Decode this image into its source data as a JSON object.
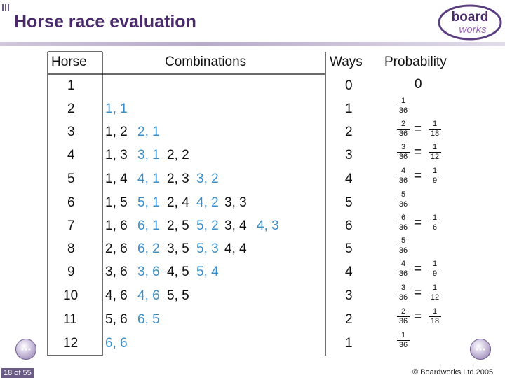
{
  "title": "Horse race evaluation",
  "logo": {
    "line1": "board",
    "line2": "works"
  },
  "table": {
    "headers": {
      "horse": "Horse",
      "combinations": "Combinations",
      "ways": "Ways",
      "probability": "Probability"
    },
    "rows": [
      {
        "horse": "1",
        "combos": [],
        "ways": "0",
        "prob": {
          "zero": "0"
        }
      },
      {
        "horse": "2",
        "combos": [
          "1, 1"
        ],
        "ways": "1",
        "prob": {
          "n": "1",
          "d": "36"
        }
      },
      {
        "horse": "3",
        "combos": [
          "1, 2",
          "2, 1"
        ],
        "ways": "2",
        "prob": {
          "n": "2",
          "d": "36",
          "sn": "1",
          "sd": "18"
        }
      },
      {
        "horse": "4",
        "combos": [
          "1, 3",
          "3, 1",
          "2, 2"
        ],
        "ways": "3",
        "prob": {
          "n": "3",
          "d": "36",
          "sn": "1",
          "sd": "12"
        }
      },
      {
        "horse": "5",
        "combos": [
          "1, 4",
          "4, 1",
          "2, 3",
          "3, 2"
        ],
        "ways": "4",
        "prob": {
          "n": "4",
          "d": "36",
          "sn": "1",
          "sd": "9"
        }
      },
      {
        "horse": "6",
        "combos": [
          "1, 5",
          "5, 1",
          "2, 4",
          "4, 2",
          "3, 3"
        ],
        "ways": "5",
        "prob": {
          "n": "5",
          "d": "36"
        }
      },
      {
        "horse": "7",
        "combos": [
          "1, 6",
          "6, 1",
          "2, 5",
          "5, 2",
          "3, 4",
          "4, 3"
        ],
        "ways": "6",
        "prob": {
          "n": "6",
          "d": "36",
          "sn": "1",
          "sd": "6"
        }
      },
      {
        "horse": "8",
        "combos": [
          "2, 6",
          "6, 2",
          "3, 5",
          "5, 3",
          "4, 4"
        ],
        "ways": "5",
        "prob": {
          "n": "5",
          "d": "36"
        }
      },
      {
        "horse": "9",
        "combos": [
          "3, 6",
          "3, 6",
          "4, 5",
          "5, 4"
        ],
        "ways": "4",
        "prob": {
          "n": "4",
          "d": "36",
          "sn": "1",
          "sd": "9"
        }
      },
      {
        "horse": "10",
        "combos": [
          "4, 6",
          "4, 6",
          "5, 5"
        ],
        "ways": "3",
        "prob": {
          "n": "3",
          "d": "36",
          "sn": "1",
          "sd": "12"
        }
      },
      {
        "horse": "11",
        "combos": [
          "5, 6",
          "6, 5"
        ],
        "ways": "2",
        "prob": {
          "n": "2",
          "d": "36",
          "sn": "1",
          "sd": "18"
        }
      },
      {
        "horse": "12",
        "combos": [
          "6, 6"
        ],
        "ways": "1",
        "prob": {
          "n": "1",
          "d": "36"
        }
      }
    ],
    "equals_sign": "="
  },
  "footer": {
    "page": "18 of 55",
    "copyright": "© Boardworks Ltd 2005"
  },
  "colors": {
    "title": "#4a2a6a",
    "grid": "#111111",
    "blue": "#3a8ec8",
    "nav": "#8a76aa"
  }
}
